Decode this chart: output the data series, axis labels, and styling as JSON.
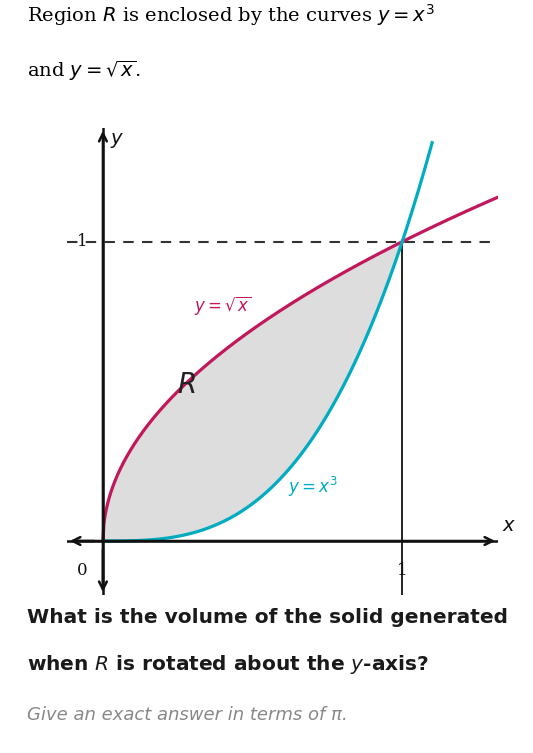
{
  "title_line1": "Region $R$ is enclosed by the curves $y = x^3$",
  "title_line2": "and $y = \\sqrt{x}$.",
  "curve1_label": "$y = \\sqrt{x}$",
  "curve2_label": "$y = x^3$",
  "region_label": "$R$",
  "question_line1": "What is the volume of the solid generated",
  "question_line2": "when $R$ is rotated about the $y$-axis?",
  "answer_hint": "Give an exact answer in terms of π.",
  "color_sqrt": "#C2185B",
  "color_cubic": "#00ACC1",
  "color_fill": "#DDDDDD",
  "color_dashed": "#333333",
  "color_axes": "#111111",
  "color_question": "#1a1a1a",
  "color_hint": "#888888",
  "background_color": "#FFFFFF"
}
